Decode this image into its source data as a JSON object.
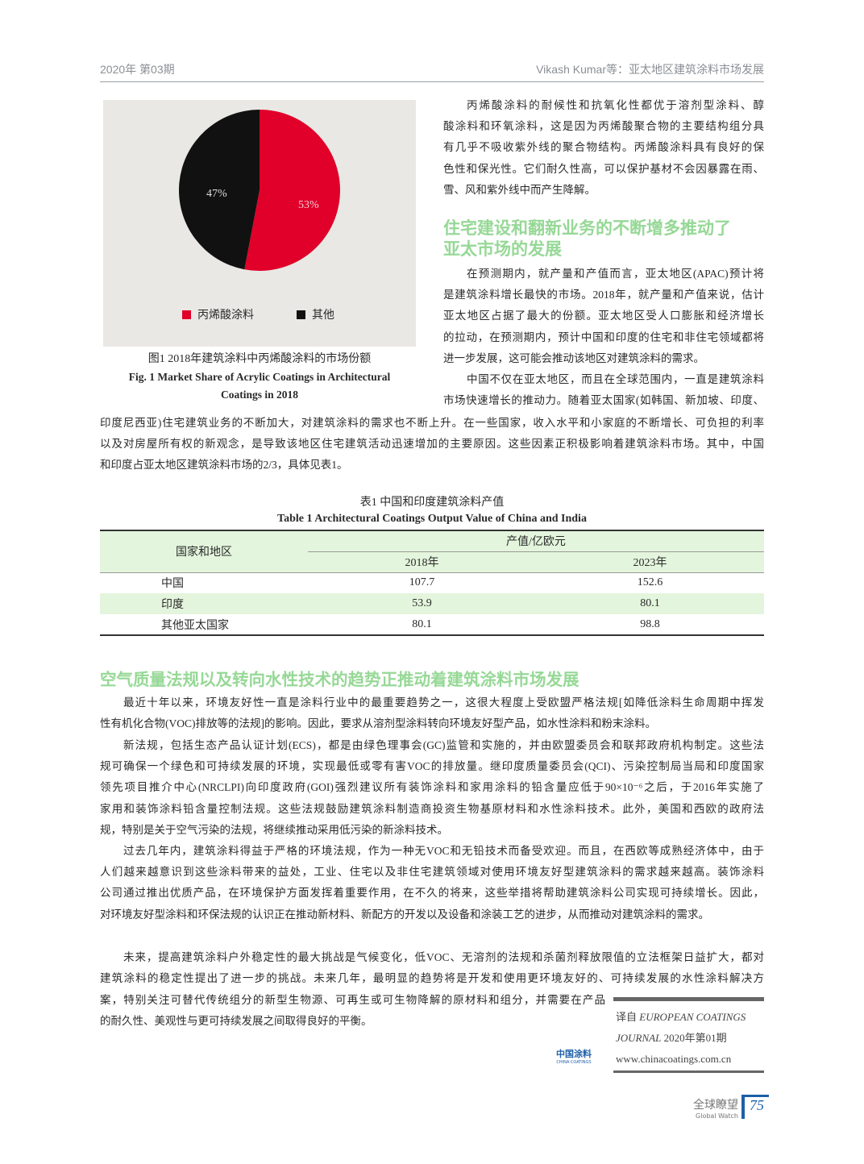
{
  "header": {
    "left": "2020年 第03期",
    "right": "Vikash Kumar等：亚太地区建筑涂料市场发展"
  },
  "figure": {
    "slices": [
      {
        "label": "丙烯酸涂料",
        "value": 53,
        "pct": "53%",
        "color": "#e0002a"
      },
      {
        "label": "其他",
        "value": 47,
        "pct": "47%",
        "color": "#111111"
      }
    ],
    "bg": "#e9e8e4",
    "caption_cn": "图1 2018年建筑涂料中丙烯酸涂料的市场份额",
    "caption_en1": "Fig. 1   Market Share of Acrylic Coatings in Architectural",
    "caption_en2": "Coatings in 2018"
  },
  "right_col": {
    "p1": [
      "丙烯酸涂料的耐候性和抗氧化性都优于溶剂型涂料、醇",
      "酸涂料和环氧涂料，这是因为丙烯酸聚合物的主要结构组分具",
      "有几乎不吸收紫外线的聚合物结构。丙烯酸涂料具有良好的保",
      "色性和保光性。它们耐久性高，可以保护基材不会因暴露在雨、",
      "雪、风和紫外线中而产生降解。"
    ],
    "heading": [
      "住宅建设和翻新业务的不断增多推动了",
      "亚太市场的发展"
    ],
    "p2": [
      "在预测期内，就产量和产值而言，亚太地区(APAC)预计将",
      "是建筑涂料增长最快的市场。2018年，就产量和产值来说，估计",
      "亚太地区占据了最大的份额。亚太地区受人口膨胀和经济增长",
      "的拉动，在预测期内，预计中国和印度的住宅和非住宅领域都将",
      "进一步发展，这可能会推动该地区对建筑涂料的需求。"
    ],
    "p3": [
      "中国不仅在亚太地区，而且在全球范围内，一直是建筑涂料",
      "市场快速增长的推动力。随着亚太国家(如韩国、新加坡、印度、"
    ]
  },
  "p3_cont": [
    "印度尼西亚)住宅建筑业务的不断加大，对建筑涂料的需求也不断上升。在一些国家，收入水平和小家庭的不断增长、可负担的利率",
    "以及对房屋所有权的新观念，是导致该地区住宅建筑活动迅速增加的主要原因。这些因素正积极影响着建筑涂料市场。其中，中国",
    "和印度占亚太地区建筑涂料市场的2/3，具体见表1。"
  ],
  "table": {
    "title_cn": "表1  中国和印度建筑涂料产值",
    "title_en": "Table 1   Architectural Coatings Output Value of China and India",
    "col_region": "国家和地区",
    "col_group": "产值/亿欧元",
    "years": [
      "2018年",
      "2023年"
    ],
    "rows": [
      [
        "中国",
        "107.7",
        "152.6"
      ],
      [
        "印度",
        "53.9",
        "80.1"
      ],
      [
        "其他亚太国家",
        "80.1",
        "98.8"
      ]
    ],
    "accent": "#e3f5dc"
  },
  "section2": {
    "heading": "空气质量法规以及转向水性技术的趋势正推动着建筑涂料市场发展",
    "p1": [
      "最近十年以来，环境友好性一直是涂料行业中的最重要趋势之一，这很大程度上受欧盟严格法规[如降低涂料生命周期中挥发",
      "性有机化合物(VOC)排放等的法规]的影响。因此，要求从溶剂型涂料转向环境友好型产品，如水性涂料和粉末涂料。"
    ],
    "p2": [
      "新法规，包括生态产品认证计划(ECS)，都是由绿色理事会(GC)监管和实施的，并由欧盟委员会和联邦政府机构制定。这些法",
      "规可确保一个绿色和可持续发展的环境，实现最低或零有害VOC的排放量。继印度质量委员会(QCI)、污染控制局当局和印度国家",
      "领先项目推介中心(NRCLPI)向印度政府(GOI)强烈建议所有装饰涂料和家用涂料的铅含量应低于90×10⁻⁶之后，于2016年实施了",
      "家用和装饰涂料铅含量控制法规。这些法规鼓励建筑涂料制造商投资生物基原材料和水性涂料技术。此外，美国和西欧的政府法",
      "规，特别是关于空气污染的法规，将继续推动采用低污染的新涂料技术。"
    ],
    "p3": [
      "过去几年内，建筑涂料得益于严格的环境法规，作为一种无VOC和无铅技术而备受欢迎。而且，在西欧等成熟经济体中，由于",
      "人们越来越意识到这些涂料带来的益处，工业、住宅以及非住宅建筑领域对使用环境友好型建筑涂料的需求越来越高。装饰涂料",
      "公司通过推出优质产品，在环境保护方面发挥着重要作用，在不久的将来，这些举措将帮助建筑涂料公司实现可持续增长。因此，",
      "对环境友好型涂料和环保法规的认识正在推动新材料、新配方的开发以及设备和涂装工艺的进步，从而推动对建筑涂料的需求。"
    ],
    "p4a": [
      "未来，提高建筑涂料户外稳定性的最大挑战是气候变化，低VOC、无溶剂的法规和杀菌剂释放限值的立法框架日益扩大，都对",
      "建筑涂料的稳定性提出了进一步的挑战。未来几年，最明显的趋势将是开发和使用更环境友好的、可持续发展的水性涂料解决方"
    ],
    "p4b": [
      "案，特别关注可替代传统组分的新型生物源、可再生或可生物降解的原材料和组分，并需要在产品",
      "的耐久性、美观性与更可持续发展之间取得良好的平衡。"
    ]
  },
  "source": {
    "line1_cn": "译自 ",
    "line1_en": "EUROPEAN COATINGS",
    "line2_en": "JOURNAL",
    "line2_cn": " 2020年第01期",
    "url": "www.chinacoatings.com.cn",
    "logo_cn": "中国涂料",
    "logo_en": "CHINA COATINGS"
  },
  "footer": {
    "section_cn": "全球瞭望",
    "section_en": "Global Watch",
    "page": "75"
  }
}
